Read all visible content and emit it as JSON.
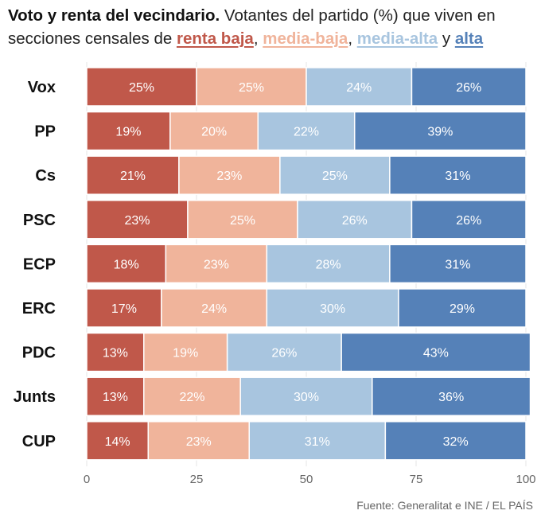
{
  "title": {
    "bold": "Voto y renta del vecindario.",
    "text1": " Votantes del partido (%) que viven en secciones censales de ",
    "cat1": "renta baja",
    "sep1": ", ",
    "cat2": "media-baja",
    "sep2": ", ",
    "cat3": "media-alta",
    "sep3": " y ",
    "cat4": "alta"
  },
  "colors": {
    "renta_baja": "#c0584a",
    "media_baja": "#f0b49b",
    "media_alta": "#a8c5df",
    "alta": "#5581b8"
  },
  "source": "Fuente: Generalitat e INE / EL PAÍS",
  "chart_data": {
    "type": "bar",
    "orientation": "horizontal",
    "stacked": true,
    "categories": [
      "Vox",
      "PP",
      "Cs",
      "PSC",
      "ECP",
      "ERC",
      "PDC",
      "Junts",
      "CUP"
    ],
    "series": [
      {
        "name": "renta baja",
        "values": [
          25,
          19,
          21,
          23,
          18,
          17,
          13,
          13,
          14
        ]
      },
      {
        "name": "media-baja",
        "values": [
          25,
          20,
          23,
          25,
          23,
          24,
          19,
          22,
          23
        ]
      },
      {
        "name": "media-alta",
        "values": [
          24,
          22,
          25,
          26,
          28,
          30,
          26,
          30,
          31
        ]
      },
      {
        "name": "alta",
        "values": [
          26,
          39,
          31,
          26,
          31,
          29,
          43,
          36,
          32
        ]
      }
    ],
    "label_suffix": "%",
    "xlim": [
      0,
      100
    ],
    "xticks": [
      "0",
      "25",
      "50",
      "75",
      "100"
    ],
    "grid": true
  }
}
